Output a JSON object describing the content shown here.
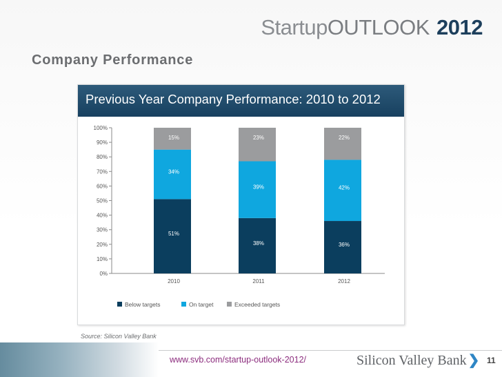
{
  "brand": {
    "startup": "Startup",
    "outlook": "OUTLOOK",
    "year": "2012"
  },
  "page_title": "Company Performance",
  "source": "Source: Silicon Valley Bank",
  "footer": {
    "url": "www.svb.com/startup-outlook-2012/",
    "bank": "Silicon Valley Bank",
    "page": "11"
  },
  "colors": {
    "below": "#0b3e5e",
    "on": "#0fa7df",
    "exceeded": "#9b9c9e",
    "header": "#1d4766"
  },
  "chart_data": {
    "type": "bar",
    "stacked": true,
    "title": "Previous Year Company Performance: 2010 to 2012",
    "categories": [
      "2010",
      "2011",
      "2012"
    ],
    "series": [
      {
        "name": "Below targets",
        "values": [
          51,
          38,
          36
        ],
        "labels": [
          "51%",
          "38%",
          "36%"
        ]
      },
      {
        "name": "On target",
        "values": [
          34,
          39,
          42
        ],
        "labels": [
          "34%",
          "39%",
          "42%"
        ]
      },
      {
        "name": "Exceeded targets",
        "values": [
          15,
          23,
          22
        ],
        "labels": [
          "15%",
          "23%",
          "22%"
        ]
      }
    ],
    "yticks": [
      "0%",
      "10%",
      "20%",
      "30%",
      "40%",
      "50%",
      "60%",
      "70%",
      "80%",
      "90%",
      "100%"
    ],
    "ylim": [
      0,
      100
    ],
    "legend_position": "bottom",
    "grid": false
  }
}
